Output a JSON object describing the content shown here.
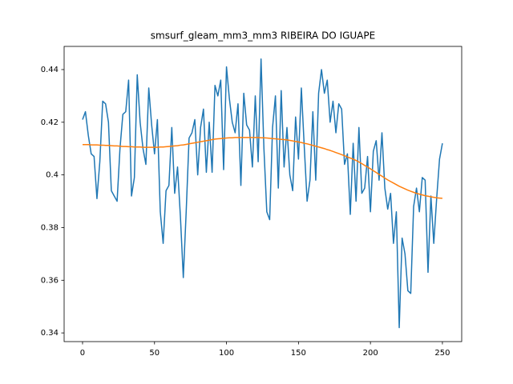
{
  "chart_data": {
    "type": "line",
    "title": "smsurf_gleam_mm3_mm3 RIBEIRA DO IGUAPE",
    "x": [
      0,
      2,
      4,
      6,
      8,
      10,
      12,
      14,
      16,
      18,
      20,
      22,
      24,
      26,
      28,
      30,
      32,
      34,
      36,
      38,
      40,
      42,
      44,
      46,
      48,
      50,
      52,
      54,
      56,
      58,
      60,
      62,
      64,
      66,
      68,
      70,
      72,
      74,
      76,
      78,
      80,
      82,
      84,
      86,
      88,
      90,
      92,
      94,
      96,
      98,
      100,
      102,
      104,
      106,
      108,
      110,
      112,
      114,
      116,
      118,
      120,
      122,
      124,
      126,
      128,
      130,
      132,
      134,
      136,
      138,
      140,
      142,
      144,
      146,
      148,
      150,
      152,
      154,
      156,
      158,
      160,
      162,
      164,
      166,
      168,
      170,
      172,
      174,
      176,
      178,
      180,
      182,
      184,
      186,
      188,
      190,
      192,
      194,
      196,
      198,
      200,
      202,
      204,
      206,
      208,
      210,
      212,
      214,
      216,
      218,
      220,
      222,
      224,
      226,
      228,
      230,
      232,
      234,
      236,
      238,
      240,
      242,
      244,
      246,
      248,
      250
    ],
    "series": [
      {
        "color": "#1f77b4",
        "values": [
          0.421,
          0.424,
          0.415,
          0.408,
          0.407,
          0.391,
          0.405,
          0.428,
          0.427,
          0.42,
          0.394,
          0.392,
          0.39,
          0.41,
          0.423,
          0.424,
          0.436,
          0.392,
          0.399,
          0.438,
          0.42,
          0.41,
          0.404,
          0.433,
          0.419,
          0.408,
          0.421,
          0.386,
          0.374,
          0.394,
          0.396,
          0.418,
          0.393,
          0.403,
          0.384,
          0.361,
          0.386,
          0.414,
          0.416,
          0.421,
          0.4,
          0.418,
          0.425,
          0.401,
          0.42,
          0.401,
          0.434,
          0.43,
          0.436,
          0.402,
          0.441,
          0.429,
          0.42,
          0.416,
          0.427,
          0.396,
          0.431,
          0.419,
          0.417,
          0.403,
          0.43,
          0.405,
          0.444,
          0.41,
          0.386,
          0.383,
          0.418,
          0.43,
          0.395,
          0.432,
          0.403,
          0.418,
          0.4,
          0.394,
          0.422,
          0.406,
          0.433,
          0.411,
          0.39,
          0.398,
          0.424,
          0.398,
          0.431,
          0.44,
          0.431,
          0.436,
          0.42,
          0.428,
          0.416,
          0.427,
          0.425,
          0.404,
          0.408,
          0.385,
          0.412,
          0.39,
          0.418,
          0.393,
          0.395,
          0.407,
          0.386,
          0.409,
          0.413,
          0.398,
          0.416,
          0.395,
          0.387,
          0.393,
          0.374,
          0.386,
          0.342,
          0.376,
          0.37,
          0.356,
          0.355,
          0.388,
          0.395,
          0.386,
          0.399,
          0.398,
          0.363,
          0.392,
          0.374,
          0.391,
          0.406,
          0.412
        ]
      },
      {
        "color": "#ff7f0e",
        "values": [
          0.4115,
          0.4115,
          0.4115,
          0.4114,
          0.4114,
          0.4114,
          0.4113,
          0.4113,
          0.4112,
          0.4112,
          0.4111,
          0.411,
          0.411,
          0.4109,
          0.4108,
          0.4108,
          0.4107,
          0.4107,
          0.4106,
          0.4106,
          0.4106,
          0.4105,
          0.4105,
          0.4105,
          0.4105,
          0.4105,
          0.4105,
          0.4106,
          0.4106,
          0.4107,
          0.4108,
          0.4109,
          0.411,
          0.4111,
          0.4113,
          0.4114,
          0.4116,
          0.4118,
          0.412,
          0.4122,
          0.4124,
          0.4126,
          0.4128,
          0.413,
          0.4132,
          0.4134,
          0.4136,
          0.4137,
          0.4138,
          0.4139,
          0.414,
          0.4141,
          0.4141,
          0.4142,
          0.4142,
          0.4142,
          0.4142,
          0.4142,
          0.4142,
          0.4142,
          0.4142,
          0.4142,
          0.4141,
          0.4141,
          0.414,
          0.4139,
          0.4138,
          0.4137,
          0.4136,
          0.4135,
          0.4134,
          0.4133,
          0.4131,
          0.4129,
          0.4127,
          0.4125,
          0.4123,
          0.412,
          0.4118,
          0.4115,
          0.4112,
          0.4109,
          0.4106,
          0.4103,
          0.41,
          0.4096,
          0.4093,
          0.4089,
          0.4085,
          0.4081,
          0.4077,
          0.4073,
          0.4068,
          0.4064,
          0.406,
          0.4055,
          0.4049,
          0.4043,
          0.4036,
          0.403,
          0.4023,
          0.4016,
          0.4009,
          0.4002,
          0.3995,
          0.3988,
          0.3981,
          0.3975,
          0.3969,
          0.3963,
          0.3957,
          0.3952,
          0.3947,
          0.3942,
          0.3938,
          0.3934,
          0.393,
          0.3927,
          0.3924,
          0.3921,
          0.3919,
          0.3917,
          0.3915,
          0.3913,
          0.3912,
          0.3911
        ]
      }
    ],
    "xlim": [
      -12.8,
      263.4
    ],
    "ylim": [
      0.3367,
      0.4488
    ],
    "xticks": [
      0,
      50,
      100,
      150,
      200,
      250
    ],
    "yticks": [
      0.34,
      0.36,
      0.38,
      0.4,
      0.42,
      0.44
    ]
  }
}
